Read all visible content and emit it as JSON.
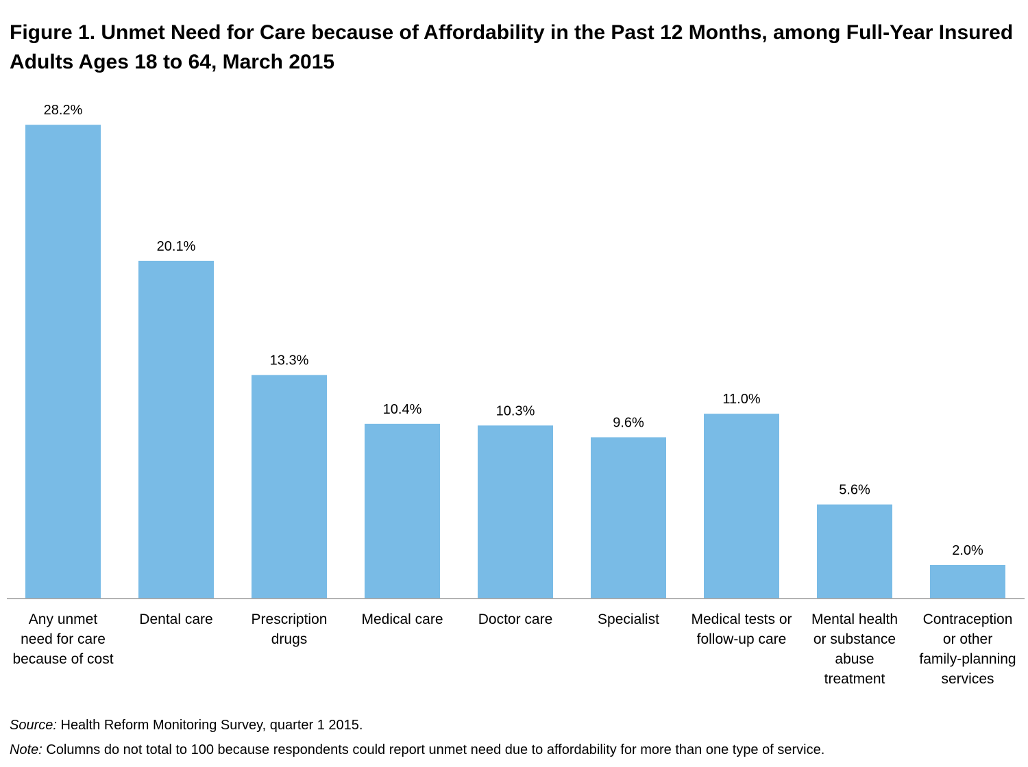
{
  "title": "Figure 1. Unmet Need for Care because of Affordability in the Past 12 Months, among Full-Year Insured Adults Ages 18 to 64,  March 2015",
  "colors": {
    "bar": "#79BBE6",
    "axis": "#9a9a9a",
    "text": "#000000"
  },
  "chart_data": {
    "type": "bar",
    "title": "Figure 1. Unmet Need for Care because of Affordability in the Past 12 Months, among Full-Year Insured Adults Ages 18 to 64,  March 2015",
    "categories": [
      [
        "Any unmet",
        "need for care",
        "because of cost"
      ],
      [
        "Dental care"
      ],
      [
        "Prescription",
        "drugs"
      ],
      [
        "Medical care"
      ],
      [
        "Doctor care"
      ],
      [
        "Specialist"
      ],
      [
        "Medical tests or",
        "follow-up care"
      ],
      [
        "Mental health",
        "or substance",
        "abuse",
        "treatment"
      ],
      [
        "Contraception",
        "or other",
        "family-planning",
        "services"
      ]
    ],
    "values": [
      28.2,
      20.1,
      13.3,
      10.4,
      10.3,
      9.6,
      11.0,
      5.6,
      2.0
    ],
    "data_labels": [
      "28.2%",
      "20.1%",
      "13.3%",
      "10.4%",
      "10.3%",
      "9.6%",
      "11.0%",
      "5.6%",
      "2.0%"
    ],
    "ylim": [
      0,
      30
    ],
    "xlabel": "",
    "ylabel": "",
    "grid": false,
    "legend": "none"
  },
  "footer": {
    "source_lead": "Source:",
    "source_text": " Health Reform Monitoring Survey,  quarter 1 2015.",
    "note_lead": "Note:",
    "note_text": " Columns do not total to 100 because respondents could report unmet need due to affordability for more than one type of service."
  }
}
